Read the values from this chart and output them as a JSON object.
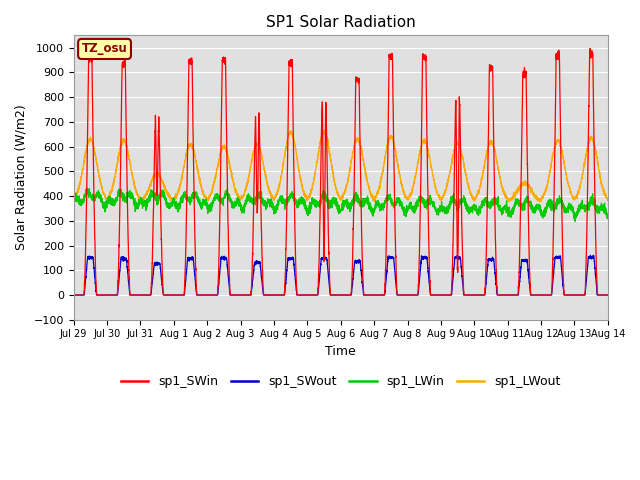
{
  "title": "SP1 Solar Radiation",
  "xlabel": "Time",
  "ylabel": "Solar Radiation (W/m2)",
  "ylim": [
    -100,
    1050
  ],
  "yticks": [
    -100,
    0,
    100,
    200,
    300,
    400,
    500,
    600,
    700,
    800,
    900,
    1000
  ],
  "colors": {
    "SWin": "#ff0000",
    "SWout": "#0000cc",
    "LWin": "#00cc00",
    "LWout": "#ffaa00"
  },
  "legend_labels": [
    "sp1_SWin",
    "sp1_SWout",
    "sp1_LWin",
    "sp1_LWout"
  ],
  "tz_label": "TZ_osu",
  "bg_color": "#e0e0e0",
  "grid_color": "#ffffff",
  "num_days": 16,
  "points_per_day": 288
}
